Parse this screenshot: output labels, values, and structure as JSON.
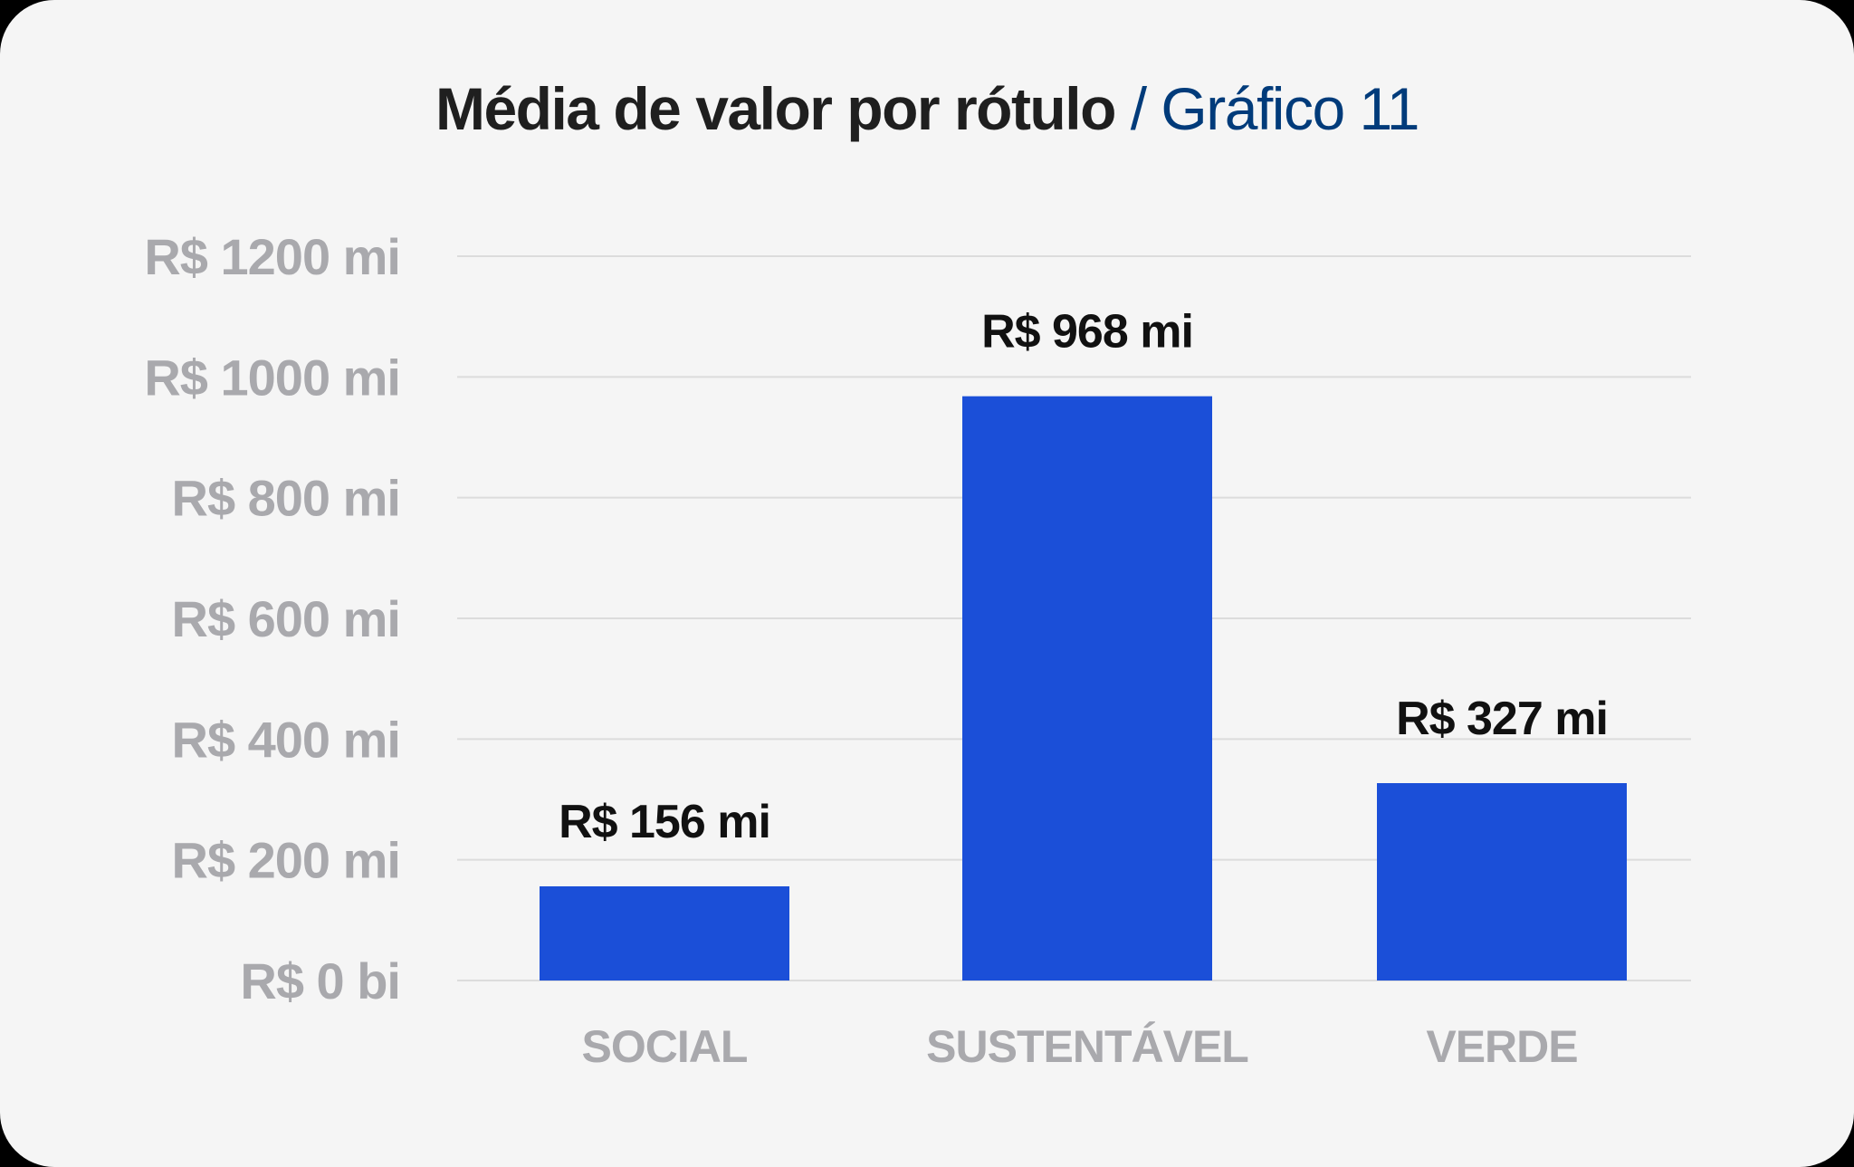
{
  "header": {
    "title": "Média de valor por rótulo",
    "subtitle": "/ Gráfico 11"
  },
  "colors": {
    "bar": "#1b4fd8",
    "grid": "#dcdcdc",
    "tick": "#a9a9ad",
    "subtitle": "#003b7a"
  },
  "chart_data": {
    "type": "bar",
    "title": "Média de valor por rótulo",
    "subtitle": "/ Gráfico 11",
    "categories": [
      "SOCIAL",
      "SUSTENTÁVEL",
      "VERDE"
    ],
    "values": [
      156,
      968,
      327
    ],
    "value_labels": [
      "R$ 156 mi",
      "R$ 968 mi",
      "R$ 327 mi"
    ],
    "unit": "R$ mi",
    "ylim": [
      0,
      1200
    ],
    "yticks": [
      0,
      200,
      400,
      600,
      800,
      1000,
      1200
    ],
    "ytick_labels": [
      "R$ 0 bi",
      "R$ 200 mi",
      "R$ 400 mi",
      "R$ 600 mi",
      "R$ 800 mi",
      "R$ 1000 mi",
      "R$ 1200 mi"
    ],
    "xlabel": "",
    "ylabel": "",
    "grid": true,
    "legend": "none"
  }
}
